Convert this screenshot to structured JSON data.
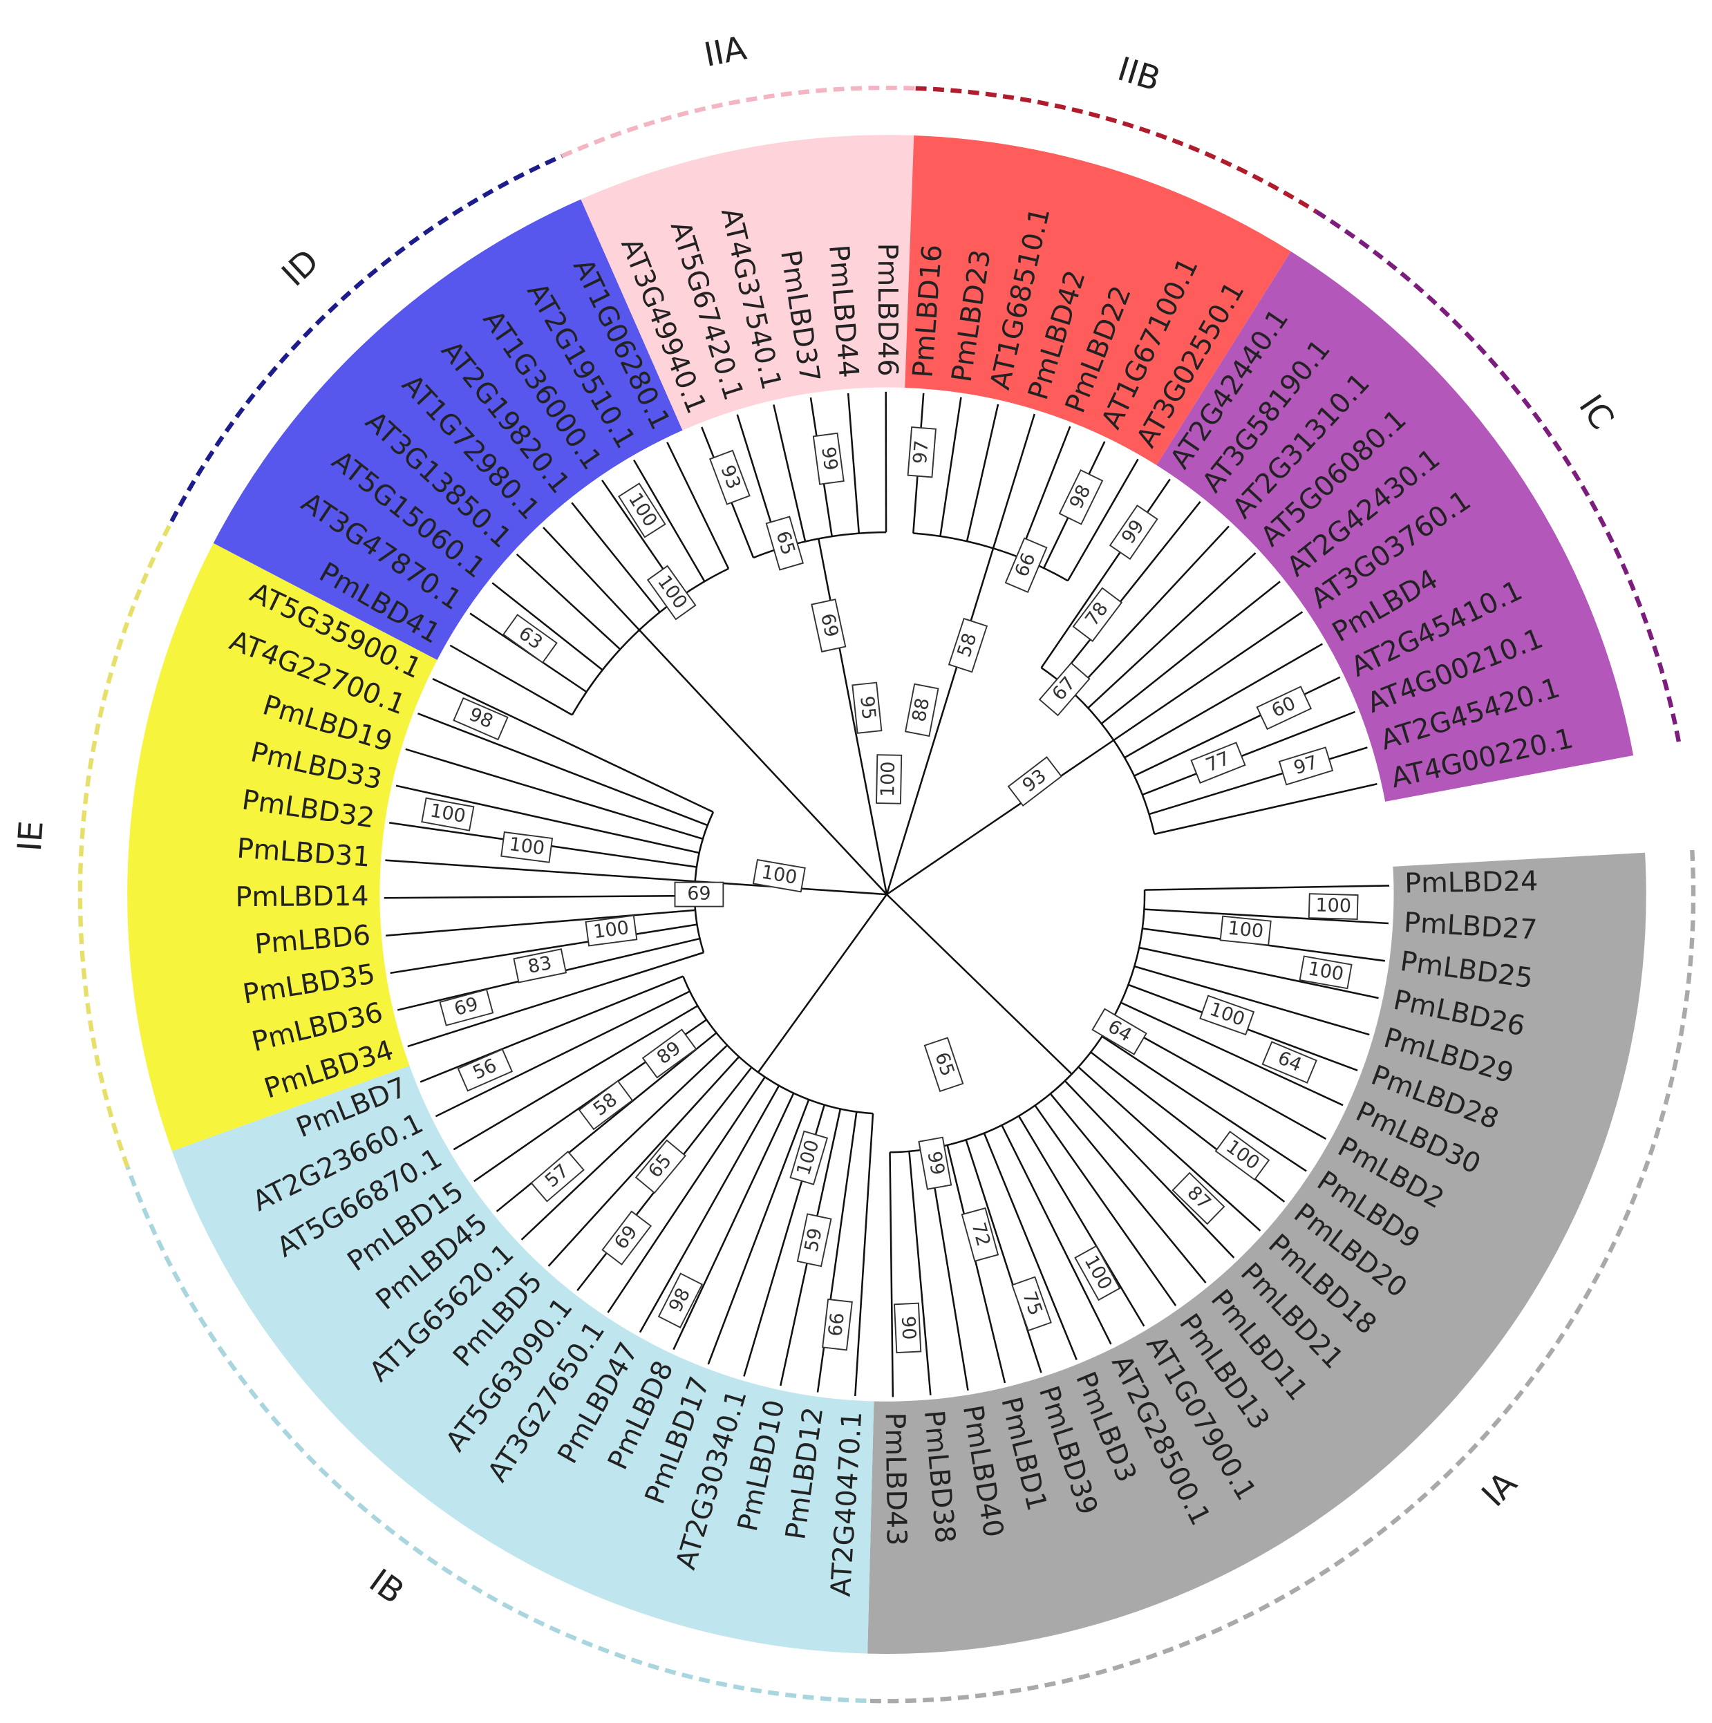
{
  "clades": [
    {
      "label": "IA",
      "leaves": [
        "PmLBD24",
        "PmLBD27",
        "PmLBD25",
        "PmLBD26",
        "PmLBD29",
        "PmLBD28",
        "PmLBD30",
        "PmLBD2",
        "PmLBD9",
        "PmLBD20",
        "PmLBD18",
        "PmLBD21",
        "PmLBD11",
        "PmLBD13",
        "AT1G07900.1",
        "AT2G28500.1",
        "PmLBD3",
        "PmLBD39",
        "PmLBD1",
        "PmLBD40",
        "PmLBD38",
        "PmLBD43"
      ]
    },
    {
      "label": "IB",
      "leaves": [
        "AT2G40470.1",
        "PmLBD12",
        "PmLBD10",
        "AT2G30340.1",
        "PmLBD17",
        "PmLBD8",
        "PmLBD47",
        "AT3G27650.1",
        "AT5G63090.1",
        "PmLBD5",
        "AT1G65620.1",
        "PmLBD45",
        "PmLBD15",
        "AT5G66870.1",
        "AT2G23660.1",
        "PmLBD7"
      ]
    },
    {
      "label": "IE",
      "leaves": [
        "PmLBD34",
        "PmLBD36",
        "PmLBD35",
        "PmLBD6",
        "PmLBD14",
        "PmLBD31",
        "PmLBD32",
        "PmLBD33",
        "PmLBD19",
        "AT4G22700.1",
        "AT5G35900.1"
      ]
    },
    {
      "label": "ID",
      "leaves": [
        "PmLBD41",
        "AT3G47870.1",
        "AT5G15060.1",
        "AT3G13850.1",
        "AT1G72980.1",
        "AT2G19820.1",
        "AT1G36000.1",
        "AT2G19510.1",
        "AT1G06280.1"
      ]
    },
    {
      "label": "IIA",
      "leaves": [
        "AT3G49940.1",
        "AT5G67420.1",
        "AT4G37540.1",
        "PmLBD37",
        "PmLBD44",
        "PmLBD46"
      ]
    },
    {
      "label": "IIB",
      "leaves": [
        "PmLBD16",
        "PmLBD23",
        "AT1G68510.1",
        "PmLBD42",
        "PmLBD22",
        "AT1G67100.1",
        "AT3G02550.1"
      ]
    },
    {
      "label": "IC",
      "leaves": [
        "AT2G42440.1",
        "AT3G58190.1",
        "AT2G31310.1",
        "AT5G06080.1",
        "AT2G42430.1",
        "AT3G03760.1",
        "PmLBD4",
        "AT2G45410.1",
        "AT4G00210.1",
        "AT2G45420.1",
        "AT4G00220.1"
      ]
    }
  ],
  "bootstrap": [
    100,
    100,
    100,
    100,
    64,
    64,
    100,
    87,
    65,
    99,
    72,
    75,
    100,
    90,
    100,
    59,
    66,
    98,
    69,
    65,
    89,
    58,
    57,
    56,
    69,
    83,
    100,
    69,
    100,
    100,
    100,
    98,
    63,
    100,
    100,
    93,
    65,
    99,
    69,
    95,
    100,
    88,
    97,
    58,
    66,
    98,
    99,
    78,
    67,
    60,
    77,
    97,
    93
  ]
}
